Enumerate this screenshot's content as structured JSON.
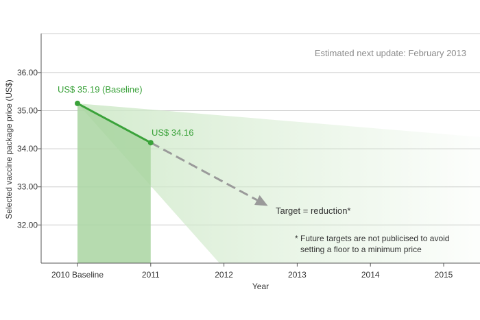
{
  "chart_data": {
    "type": "line",
    "title": "",
    "update_note": "Estimated next update: February 2013",
    "xlabel": "Year",
    "ylabel": "Selected vaccine package price (US$)",
    "x_ticks": [
      "2010 Baseline",
      "2011",
      "2012",
      "2013",
      "2014",
      "2015"
    ],
    "y_ticks": [
      "32.00",
      "33.00",
      "34.00",
      "35.00",
      "36.00"
    ],
    "ylim": [
      31.0,
      37.0
    ],
    "series": [
      {
        "x": [
          2010,
          2011
        ],
        "values": [
          35.19,
          34.16
        ]
      }
    ],
    "projection": {
      "from": [
        2011,
        34.16
      ],
      "to": [
        2012.6,
        32.5
      ]
    },
    "point_labels": [
      "US$ 35.19 (Baseline)",
      "US$ 34.16"
    ],
    "target_label": "Target = reduction*",
    "footnote": [
      "* Future targets are not publicised to avoid",
      "setting a floor to a minimum price"
    ],
    "colors": {
      "line": "#3aa23a",
      "fill": "#a9d5a1",
      "projection": "#9a9a9a",
      "grid": "#cccccc",
      "cone": "#cfe9c9"
    }
  }
}
